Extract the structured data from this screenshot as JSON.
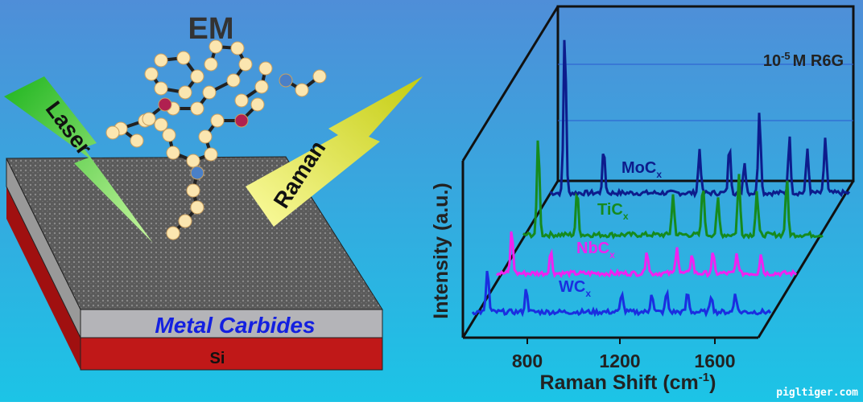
{
  "title": "EM",
  "laser": "Laser",
  "raman": "Raman",
  "substrate": {
    "layer": "Metal Carbides",
    "base": "Si"
  },
  "plot": {
    "analyte": {
      "prefix": "10",
      "exponent": "-5",
      "suffix": "M R6G"
    },
    "spectra": [
      {
        "name": "MoC",
        "sub": "x",
        "color": "#0d1c8c"
      },
      {
        "name": "TiC",
        "sub": "x",
        "color": "#168a1e"
      },
      {
        "name": "NbC",
        "sub": "x",
        "color": "#f022f0"
      },
      {
        "name": "WC",
        "sub": "x",
        "color": "#1a2ee0"
      }
    ],
    "y_label": "Intensity (a.u.)",
    "x_label": {
      "text": "Raman Shift (cm",
      "exponent": "-1",
      "close": ")"
    },
    "x_ticks": [
      "800",
      "1200",
      "1600"
    ]
  },
  "watermark": "pigltiger.com"
}
